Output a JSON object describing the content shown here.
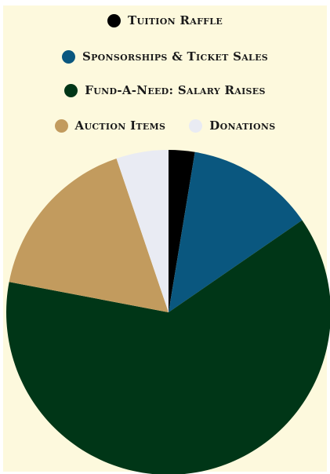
{
  "chart_data": {
    "type": "pie",
    "title": "",
    "legend_position": "top",
    "start_angle_deg": 0,
    "direction": "clockwise",
    "slices": [
      {
        "label": "Tuition Raffle",
        "value": 2.6,
        "color": "#000000"
      },
      {
        "label": "Sponsorships & Ticket Sales",
        "value": 12.8,
        "color": "#0a577f"
      },
      {
        "label": "Fund-A-Need: Salary Raises",
        "value": 62.6,
        "color": "#003617"
      },
      {
        "label": "Auction Items",
        "value": 16.8,
        "color": "#c29b5e"
      },
      {
        "label": "Donations",
        "value": 5.2,
        "color": "#e9ebf3"
      }
    ]
  }
}
